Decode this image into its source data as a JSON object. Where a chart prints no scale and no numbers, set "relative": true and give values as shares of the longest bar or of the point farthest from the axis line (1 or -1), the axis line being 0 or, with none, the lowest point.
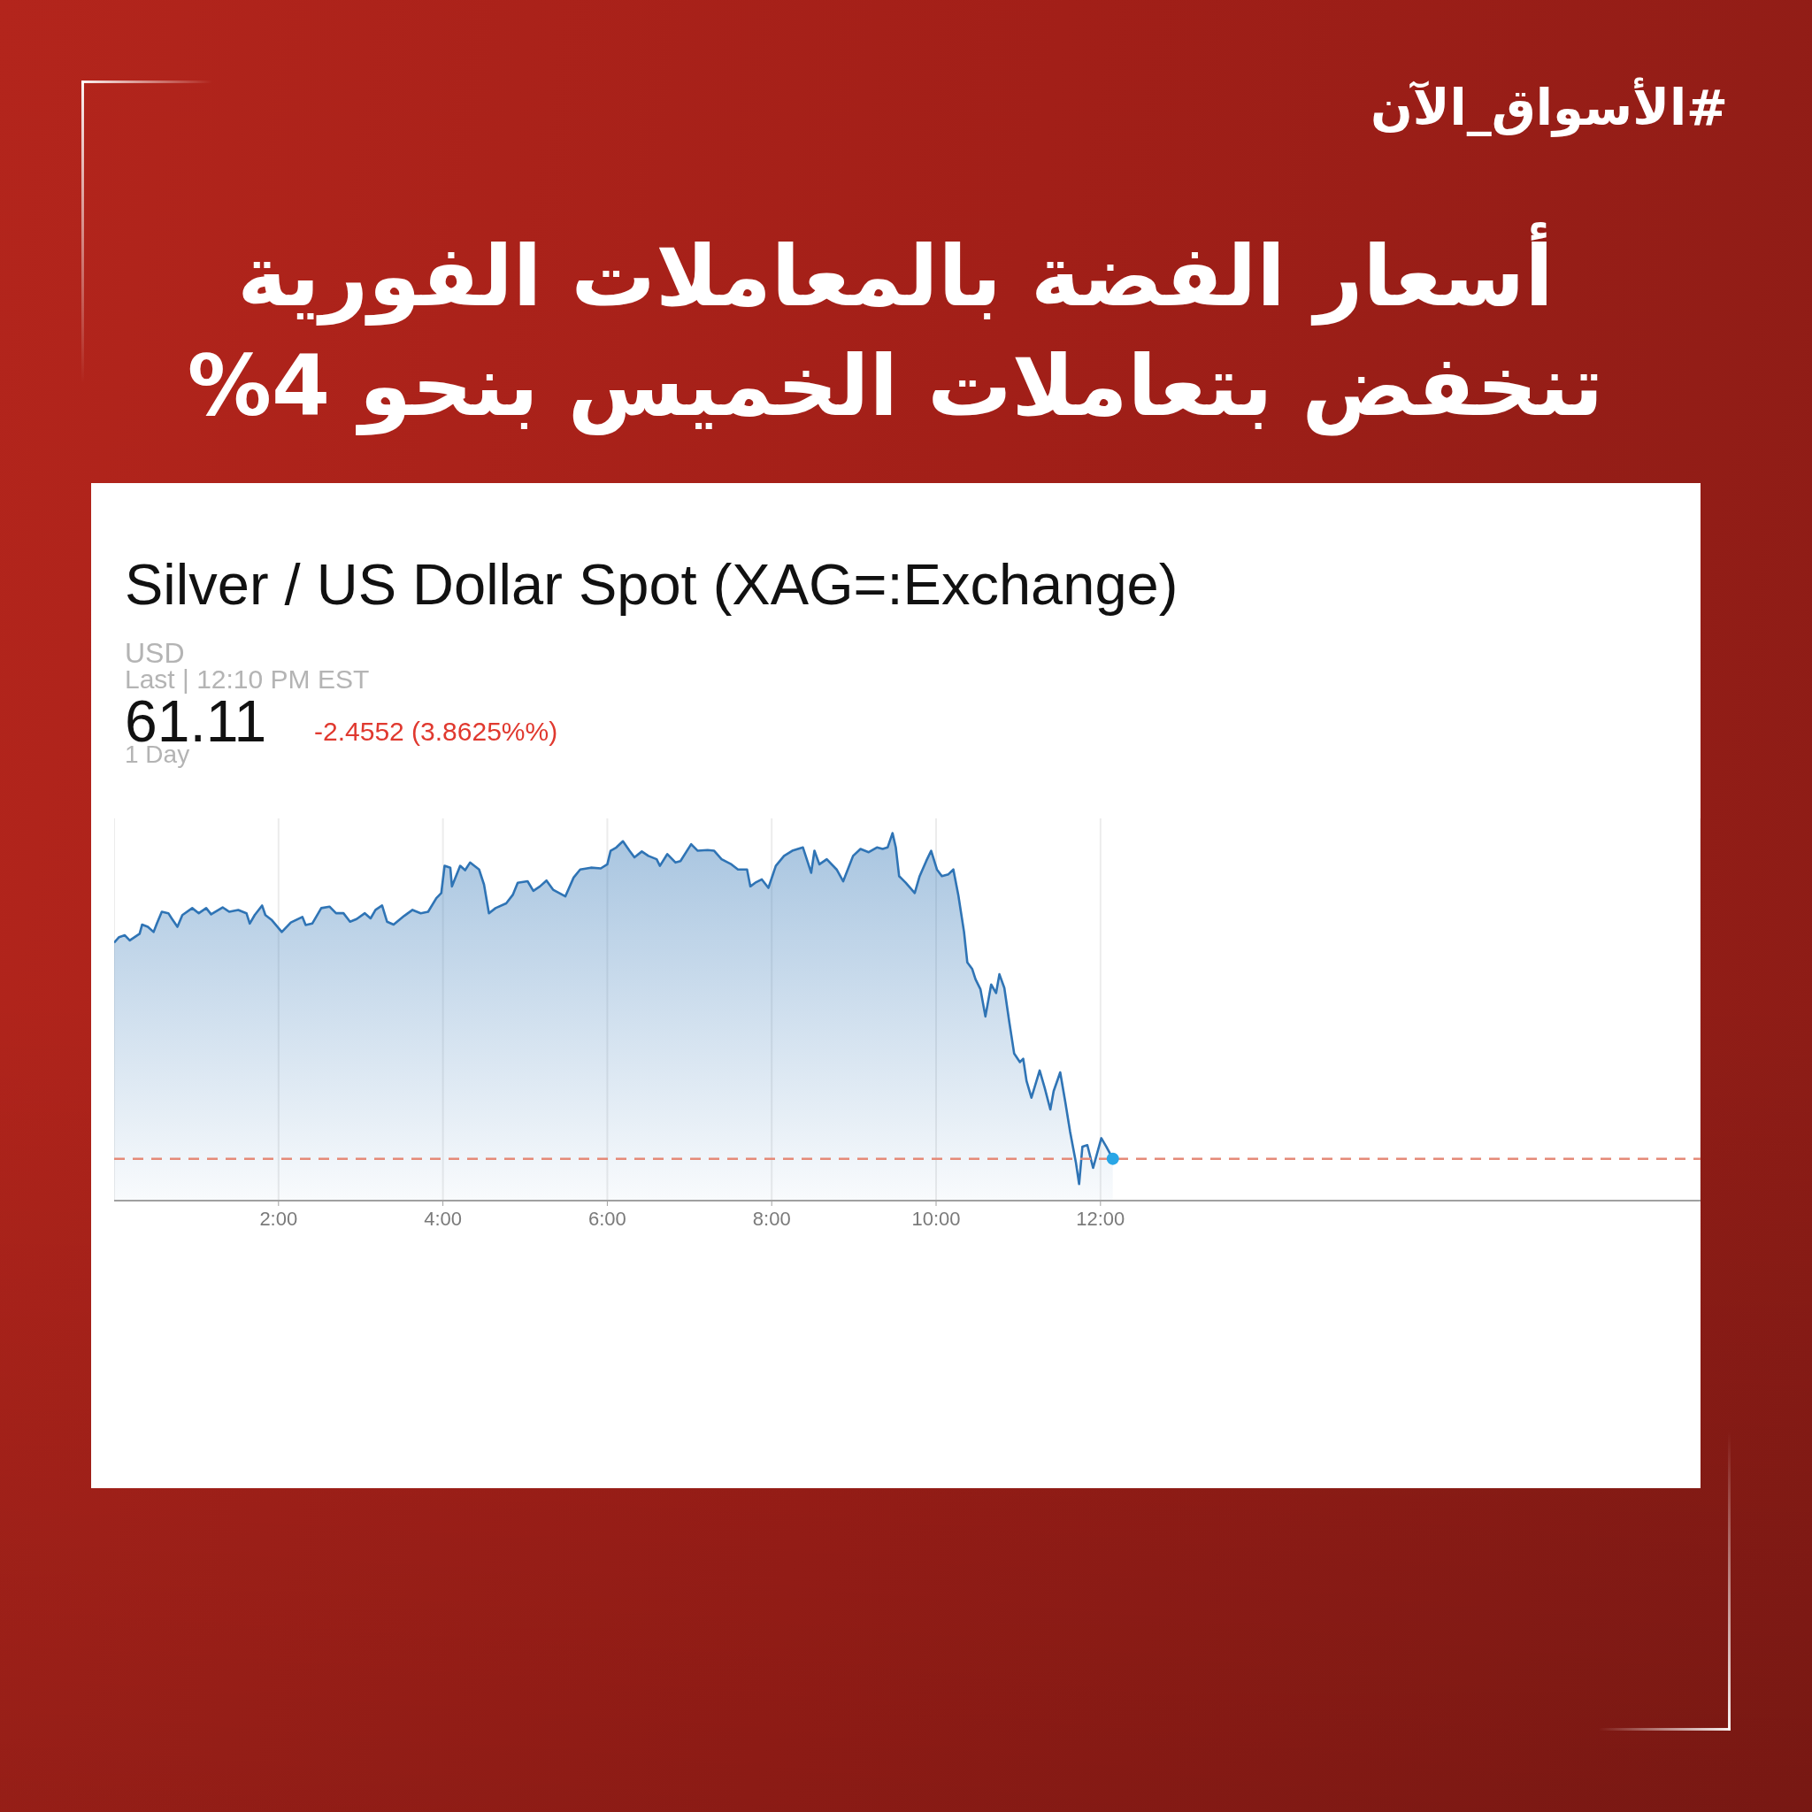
{
  "chart_data": {
    "type": "area",
    "title": "أسعار الفضة بالمعاملات الفورية\nتنخفض بتعاملات الخميس بنحو 4%",
    "subtitle": "Silver / US Dollar Spot (XAG=:Exchange)",
    "annotations": [
      "#الأسواق_الآن",
      "USD",
      "Last | 12:10 PM EST",
      "61.11",
      "-2.4552 (3.8625%%)",
      "1 Day"
    ],
    "relative": true,
    "xlim": [
      0,
      19.3
    ],
    "xticks": [
      {
        "value": 2,
        "label": "2:00"
      },
      {
        "value": 4,
        "label": "4:00"
      },
      {
        "value": 6,
        "label": "6:00"
      },
      {
        "value": 8,
        "label": "8:00"
      },
      {
        "value": 10,
        "label": "10:00"
      },
      {
        "value": 12,
        "label": "12:00"
      }
    ],
    "grid": "x",
    "ref_lines": [
      {
        "axis": "y",
        "value": 0.114,
        "color": "#e58a78",
        "line_style": "dashed"
      }
    ],
    "series": [
      {
        "color": "#2f74b5",
        "x": [
          0,
          0.06,
          0.13,
          0.19,
          0.31,
          0.34,
          0.41,
          0.48,
          0.52,
          0.58,
          0.66,
          0.7,
          0.77,
          0.83,
          0.95,
          1.03,
          1.12,
          1.18,
          1.32,
          1.4,
          1.51,
          1.61,
          1.65,
          1.71,
          1.8,
          1.84,
          1.92,
          2.04,
          2.15,
          2.29,
          2.33,
          2.41,
          2.52,
          2.62,
          2.7,
          2.79,
          2.87,
          2.95,
          3.05,
          3.12,
          3.18,
          3.26,
          3.32,
          3.4,
          3.53,
          3.63,
          3.73,
          3.82,
          3.92,
          3.98,
          4.02,
          4.09,
          4.11,
          4.21,
          4.27,
          4.33,
          4.44,
          4.5,
          4.56,
          4.64,
          4.77,
          4.85,
          4.91,
          5.03,
          5.1,
          5.18,
          5.26,
          5.34,
          5.49,
          5.59,
          5.67,
          5.8,
          5.92,
          6.0,
          6.04,
          6.11,
          6.19,
          6.27,
          6.33,
          6.42,
          6.5,
          6.6,
          6.64,
          6.73,
          6.83,
          6.89,
          7.02,
          7.1,
          7.22,
          7.3,
          7.39,
          7.51,
          7.59,
          7.7,
          7.74,
          7.8,
          7.88,
          7.96,
          8.05,
          8.15,
          8.25,
          8.38,
          8.44,
          8.48,
          8.52,
          8.58,
          8.67,
          8.79,
          8.87,
          8.99,
          9.08,
          9.18,
          9.28,
          9.35,
          9.41,
          9.47,
          9.51,
          9.55,
          9.63,
          9.74,
          9.8,
          9.88,
          9.94,
          10.01,
          10.07,
          10.15,
          10.21,
          10.27,
          10.34,
          10.38,
          10.44,
          10.48,
          10.54,
          10.6,
          10.67,
          10.73,
          10.77,
          10.83,
          10.89,
          10.95,
          11.02,
          11.06,
          11.1,
          11.16,
          11.26,
          11.32,
          11.39,
          11.43,
          11.51,
          11.57,
          11.63,
          11.7,
          11.74,
          11.78,
          11.84,
          11.91,
          12.01,
          12.07,
          12.15
        ],
        "values": [
          0.702,
          0.717,
          0.722,
          0.708,
          0.726,
          0.751,
          0.745,
          0.731,
          0.754,
          0.786,
          0.782,
          0.768,
          0.745,
          0.777,
          0.796,
          0.782,
          0.796,
          0.779,
          0.798,
          0.786,
          0.791,
          0.782,
          0.754,
          0.777,
          0.803,
          0.777,
          0.763,
          0.731,
          0.757,
          0.772,
          0.75,
          0.754,
          0.796,
          0.8,
          0.782,
          0.782,
          0.759,
          0.766,
          0.782,
          0.768,
          0.791,
          0.803,
          0.759,
          0.751,
          0.775,
          0.791,
          0.782,
          0.786,
          0.823,
          0.837,
          0.911,
          0.906,
          0.855,
          0.911,
          0.899,
          0.92,
          0.901,
          0.86,
          0.782,
          0.796,
          0.809,
          0.832,
          0.865,
          0.869,
          0.843,
          0.855,
          0.871,
          0.846,
          0.828,
          0.879,
          0.901,
          0.906,
          0.904,
          0.915,
          0.952,
          0.961,
          0.978,
          0.952,
          0.934,
          0.95,
          0.938,
          0.929,
          0.911,
          0.943,
          0.92,
          0.924,
          0.97,
          0.952,
          0.954,
          0.952,
          0.929,
          0.915,
          0.901,
          0.901,
          0.855,
          0.865,
          0.874,
          0.851,
          0.911,
          0.938,
          0.952,
          0.961,
          0.92,
          0.892,
          0.952,
          0.915,
          0.929,
          0.901,
          0.869,
          0.938,
          0.957,
          0.948,
          0.961,
          0.957,
          0.961,
          1,
          0.961,
          0.883,
          0.865,
          0.837,
          0.883,
          0.924,
          0.952,
          0.901,
          0.883,
          0.888,
          0.901,
          0.832,
          0.731,
          0.648,
          0.63,
          0.602,
          0.575,
          0.501,
          0.588,
          0.565,
          0.616,
          0.579,
          0.487,
          0.4,
          0.377,
          0.386,
          0.326,
          0.28,
          0.354,
          0.308,
          0.248,
          0.298,
          0.349,
          0.271,
          0.188,
          0.105,
          0.045,
          0.147,
          0.151,
          0.089,
          0.17,
          0.147,
          0.114
        ]
      },
      {
        "type": "scatter",
        "color": "#29a6e6",
        "x": [
          12.15
        ],
        "values": [
          0.114
        ]
      }
    ]
  }
}
